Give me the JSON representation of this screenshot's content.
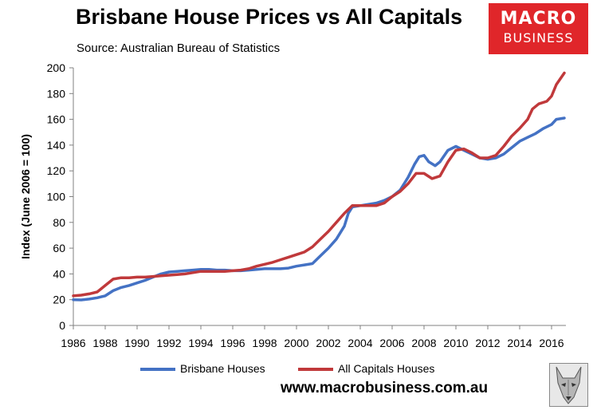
{
  "header": {
    "title": "Brisbane House Prices vs All Capitals",
    "subtitle": "Source: Australian Bureau of Statistics"
  },
  "logo": {
    "line1": "MACRO",
    "line2": "BUSINESS",
    "color": "#e0262a"
  },
  "footer": {
    "website": "www.macrobusiness.com.au",
    "wolf_icon": "wolf-head-icon"
  },
  "chart_data": {
    "type": "line",
    "title": "Brisbane House Prices vs All Capitals",
    "subtitle": "Source: Australian Bureau of Statistics",
    "xlabel": "",
    "ylabel": "Index (June 2006 = 100)",
    "xlim": [
      1986,
      2016.9
    ],
    "ylim": [
      0,
      200
    ],
    "xticks": [
      1986,
      1988,
      1990,
      1992,
      1994,
      1996,
      1998,
      2000,
      2002,
      2004,
      2006,
      2008,
      2010,
      2012,
      2014,
      2016
    ],
    "yticks": [
      0,
      20,
      40,
      60,
      80,
      100,
      120,
      140,
      160,
      180,
      200
    ],
    "grid": false,
    "legend_position": "bottom",
    "series": [
      {
        "name": "Brisbane Houses",
        "color": "#4472c4",
        "points": [
          [
            1986,
            20
          ],
          [
            1986.5,
            19.8
          ],
          [
            1987,
            20.5
          ],
          [
            1987.5,
            21.5
          ],
          [
            1988,
            23
          ],
          [
            1988.5,
            27
          ],
          [
            1989,
            29.5
          ],
          [
            1989.5,
            31
          ],
          [
            1990,
            33
          ],
          [
            1990.5,
            35
          ],
          [
            1991,
            37.5
          ],
          [
            1991.5,
            40
          ],
          [
            1992,
            41.5
          ],
          [
            1992.5,
            42
          ],
          [
            1993,
            42.5
          ],
          [
            1993.5,
            43
          ],
          [
            1994,
            43.5
          ],
          [
            1994.5,
            43.5
          ],
          [
            1995,
            43
          ],
          [
            1995.5,
            43
          ],
          [
            1996,
            42.5
          ],
          [
            1996.5,
            42.5
          ],
          [
            1997,
            43
          ],
          [
            1997.5,
            43.5
          ],
          [
            1998,
            44
          ],
          [
            1998.5,
            44
          ],
          [
            1999,
            44
          ],
          [
            1999.5,
            44.5
          ],
          [
            2000,
            46
          ],
          [
            2000.5,
            47
          ],
          [
            2001,
            48
          ],
          [
            2001.5,
            54
          ],
          [
            2002,
            60
          ],
          [
            2002.5,
            67
          ],
          [
            2003,
            77
          ],
          [
            2003.25,
            87
          ],
          [
            2003.5,
            92
          ],
          [
            2004,
            93
          ],
          [
            2004.5,
            94
          ],
          [
            2005,
            95
          ],
          [
            2005.5,
            97
          ],
          [
            2006,
            100
          ],
          [
            2006.5,
            105
          ],
          [
            2007,
            115
          ],
          [
            2007.4,
            125
          ],
          [
            2007.7,
            131
          ],
          [
            2008,
            132
          ],
          [
            2008.3,
            127
          ],
          [
            2008.7,
            124
          ],
          [
            2009,
            127
          ],
          [
            2009.5,
            136
          ],
          [
            2010,
            139
          ],
          [
            2010.5,
            136
          ],
          [
            2011,
            133
          ],
          [
            2011.5,
            130
          ],
          [
            2012,
            129
          ],
          [
            2012.5,
            130
          ],
          [
            2013,
            133
          ],
          [
            2013.5,
            138
          ],
          [
            2014,
            143
          ],
          [
            2014.5,
            146
          ],
          [
            2015,
            149
          ],
          [
            2015.5,
            153
          ],
          [
            2016,
            156
          ],
          [
            2016.3,
            160
          ],
          [
            2016.8,
            161
          ]
        ]
      },
      {
        "name": "All Capitals Houses",
        "color": "#c0393b",
        "points": [
          [
            1986,
            23
          ],
          [
            1986.5,
            23.5
          ],
          [
            1987,
            24.5
          ],
          [
            1987.5,
            26
          ],
          [
            1988,
            31
          ],
          [
            1988.5,
            36
          ],
          [
            1989,
            37
          ],
          [
            1989.5,
            37
          ],
          [
            1990,
            37.5
          ],
          [
            1990.5,
            37.5
          ],
          [
            1991,
            38
          ],
          [
            1991.5,
            38.5
          ],
          [
            1992,
            39
          ],
          [
            1992.5,
            39.5
          ],
          [
            1993,
            40
          ],
          [
            1993.5,
            41
          ],
          [
            1994,
            42
          ],
          [
            1994.5,
            42
          ],
          [
            1995,
            42
          ],
          [
            1995.5,
            42
          ],
          [
            1996,
            42.5
          ],
          [
            1996.5,
            43
          ],
          [
            1997,
            44
          ],
          [
            1997.5,
            46
          ],
          [
            1998,
            47.5
          ],
          [
            1998.5,
            49
          ],
          [
            1999,
            51
          ],
          [
            1999.5,
            53
          ],
          [
            2000,
            55
          ],
          [
            2000.5,
            57
          ],
          [
            2001,
            61
          ],
          [
            2001.5,
            67
          ],
          [
            2002,
            73
          ],
          [
            2002.5,
            80
          ],
          [
            2003,
            87
          ],
          [
            2003.5,
            93
          ],
          [
            2004,
            93
          ],
          [
            2004.5,
            93
          ],
          [
            2005,
            93
          ],
          [
            2005.5,
            95
          ],
          [
            2006,
            100
          ],
          [
            2006.5,
            104
          ],
          [
            2007,
            110
          ],
          [
            2007.5,
            118
          ],
          [
            2008,
            118
          ],
          [
            2008.5,
            114
          ],
          [
            2009,
            116
          ],
          [
            2009.5,
            127
          ],
          [
            2010,
            136
          ],
          [
            2010.5,
            137
          ],
          [
            2011,
            134
          ],
          [
            2011.5,
            130
          ],
          [
            2012,
            130
          ],
          [
            2012.5,
            132
          ],
          [
            2013,
            139
          ],
          [
            2013.5,
            147
          ],
          [
            2014,
            153
          ],
          [
            2014.5,
            160
          ],
          [
            2014.8,
            168
          ],
          [
            2015.2,
            172
          ],
          [
            2015.7,
            174
          ],
          [
            2016,
            178
          ],
          [
            2016.3,
            187
          ],
          [
            2016.8,
            196
          ]
        ]
      }
    ]
  }
}
